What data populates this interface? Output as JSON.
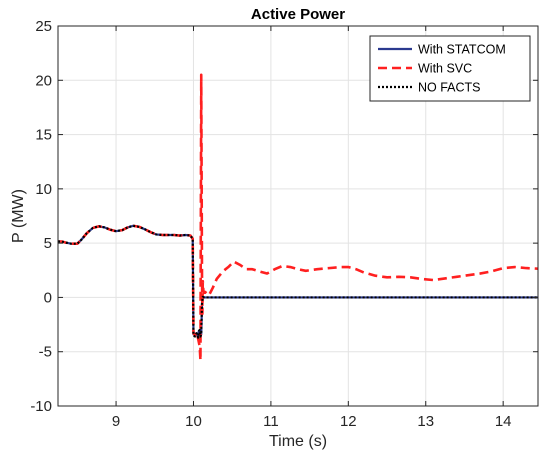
{
  "chart_data": {
    "type": "line",
    "title": "Active Power",
    "xlabel": "Time (s)",
    "ylabel": "P (MW)",
    "xlim": [
      8.25,
      14.45
    ],
    "ylim": [
      -10,
      25
    ],
    "xticks": [
      9,
      10,
      11,
      12,
      13,
      14
    ],
    "yticks": [
      -10,
      -5,
      0,
      5,
      10,
      15,
      20,
      25
    ],
    "xtick_labels": [
      "9",
      "10",
      "11",
      "12",
      "13",
      "14"
    ],
    "ytick_labels": [
      "-10",
      "-5",
      "0",
      "5",
      "10",
      "15",
      "20",
      "25"
    ],
    "grid": true,
    "legend_position": "top-right",
    "series": [
      {
        "name": "With STATCOM",
        "color": "#2b3a8f",
        "style": "solid",
        "x": [
          8.25,
          8.3,
          8.35,
          8.42,
          8.5,
          8.55,
          8.62,
          8.7,
          8.78,
          8.85,
          8.92,
          9.0,
          9.08,
          9.15,
          9.22,
          9.3,
          9.38,
          9.45,
          9.52,
          9.6,
          9.68,
          9.75,
          9.82,
          9.9,
          9.96,
          9.99,
          10.0,
          10.02,
          10.04,
          10.06,
          10.07,
          10.08,
          10.09,
          10.1,
          10.11,
          10.12,
          10.14,
          10.2,
          10.5,
          11.0,
          12.0,
          13.0,
          14.0,
          14.45
        ],
        "y": [
          5.15,
          5.15,
          5.05,
          4.95,
          4.95,
          5.3,
          5.9,
          6.4,
          6.55,
          6.45,
          6.25,
          6.1,
          6.2,
          6.45,
          6.6,
          6.5,
          6.25,
          6.0,
          5.8,
          5.75,
          5.75,
          5.75,
          5.7,
          5.75,
          5.7,
          5.4,
          -3.4,
          -3.5,
          -3.3,
          -3.6,
          -3.1,
          -3.0,
          -3.5,
          -3.4,
          -0.6,
          0.05,
          0.0,
          0.0,
          0.0,
          0.0,
          0.0,
          0.0,
          0.0,
          0.0
        ]
      },
      {
        "name": "With SVC",
        "color": "#ff2020",
        "style": "dashed",
        "x": [
          8.25,
          8.3,
          8.35,
          8.42,
          8.5,
          8.55,
          8.62,
          8.7,
          8.78,
          8.85,
          8.92,
          9.0,
          9.08,
          9.15,
          9.22,
          9.3,
          9.38,
          9.45,
          9.52,
          9.6,
          9.68,
          9.75,
          9.82,
          9.9,
          9.96,
          9.99,
          10.0,
          10.02,
          10.04,
          10.06,
          10.08,
          10.09,
          10.1,
          10.11,
          10.115,
          10.12,
          10.13,
          10.15,
          10.2,
          10.25,
          10.3,
          10.38,
          10.45,
          10.52,
          10.6,
          10.68,
          10.76,
          10.85,
          10.95,
          11.05,
          11.15,
          11.25,
          11.35,
          11.45,
          11.6,
          11.75,
          11.9,
          12.0,
          12.1,
          12.2,
          12.35,
          12.5,
          12.65,
          12.8,
          12.95,
          13.1,
          13.25,
          13.4,
          13.55,
          13.7,
          13.85,
          14.0,
          14.15,
          14.3,
          14.45
        ],
        "y": [
          5.15,
          5.15,
          5.05,
          4.95,
          4.95,
          5.3,
          5.9,
          6.4,
          6.55,
          6.45,
          6.25,
          6.1,
          6.2,
          6.45,
          6.6,
          6.5,
          6.25,
          6.0,
          5.8,
          5.75,
          5.75,
          5.75,
          5.7,
          5.75,
          5.7,
          5.4,
          -3.3,
          -3.5,
          -3.2,
          -3.8,
          -4.5,
          -5.8,
          20.5,
          2.0,
          -1.5,
          1.5,
          0.4,
          0.5,
          0.2,
          0.9,
          1.7,
          2.4,
          2.8,
          3.3,
          3.0,
          2.6,
          2.6,
          2.4,
          2.2,
          2.6,
          2.9,
          2.8,
          2.6,
          2.45,
          2.6,
          2.7,
          2.8,
          2.8,
          2.6,
          2.3,
          2.0,
          1.85,
          1.9,
          1.85,
          1.7,
          1.6,
          1.75,
          1.9,
          2.05,
          2.2,
          2.4,
          2.7,
          2.8,
          2.7,
          2.65
        ]
      },
      {
        "name": "NO FACTS",
        "color": "#000000",
        "style": "dotted",
        "x": [
          8.25,
          8.3,
          8.35,
          8.42,
          8.5,
          8.55,
          8.62,
          8.7,
          8.78,
          8.85,
          8.92,
          9.0,
          9.08,
          9.15,
          9.22,
          9.3,
          9.38,
          9.45,
          9.52,
          9.6,
          9.68,
          9.75,
          9.82,
          9.9,
          9.96,
          9.99,
          10.0,
          10.02,
          10.04,
          10.06,
          10.07,
          10.08,
          10.09,
          10.1,
          10.11,
          10.12,
          10.14,
          10.2,
          10.5,
          11.0,
          12.0,
          13.0,
          14.0,
          14.45
        ],
        "y": [
          5.15,
          5.15,
          5.05,
          4.95,
          4.95,
          5.3,
          5.9,
          6.4,
          6.55,
          6.45,
          6.25,
          6.1,
          6.2,
          6.45,
          6.6,
          6.5,
          6.25,
          6.0,
          5.8,
          5.75,
          5.75,
          5.75,
          5.7,
          5.75,
          5.7,
          5.4,
          -3.5,
          -3.6,
          -3.3,
          -3.7,
          -3.1,
          -3.0,
          -3.6,
          -3.4,
          -0.6,
          0.05,
          0.0,
          0.0,
          0.0,
          0.0,
          0.0,
          0.0,
          0.0,
          0.0
        ]
      }
    ]
  }
}
